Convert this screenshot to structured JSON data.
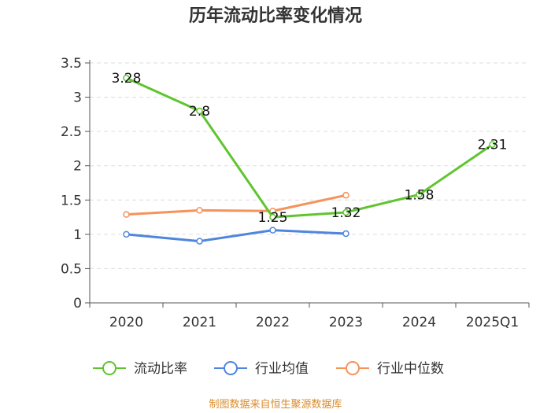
{
  "chart_data": {
    "type": "line",
    "title": "历年流动比率变化情况",
    "categories": [
      "2020",
      "2021",
      "2022",
      "2023",
      "2024",
      "2025Q1"
    ],
    "ylim": [
      0,
      3.5
    ],
    "yticks": [
      "0",
      "0.5",
      "1",
      "1.5",
      "2",
      "2.5",
      "3",
      "3.5"
    ],
    "ytick_values": [
      0,
      0.5,
      1,
      1.5,
      2,
      2.5,
      3,
      3.5
    ],
    "grid": "horizontal dashed",
    "legend_position": "bottom",
    "series": [
      {
        "name": "流动比率",
        "color": "#5fc52e",
        "values": [
          3.28,
          2.8,
          1.25,
          1.32,
          1.58,
          2.31
        ],
        "labels": [
          "3.28",
          "2.8",
          "1.25",
          "1.32",
          "1.58",
          "2.31"
        ],
        "show_labels": true
      },
      {
        "name": "行业均值",
        "color": "#4f86dd",
        "values": [
          1.0,
          0.9,
          1.06,
          1.01,
          null,
          null
        ],
        "show_labels": false
      },
      {
        "name": "行业中位数",
        "color": "#f4935a",
        "values": [
          1.29,
          1.35,
          1.34,
          1.57,
          null,
          null
        ],
        "show_labels": false
      }
    ],
    "source": "制图数据来自恒生聚源数据库"
  }
}
